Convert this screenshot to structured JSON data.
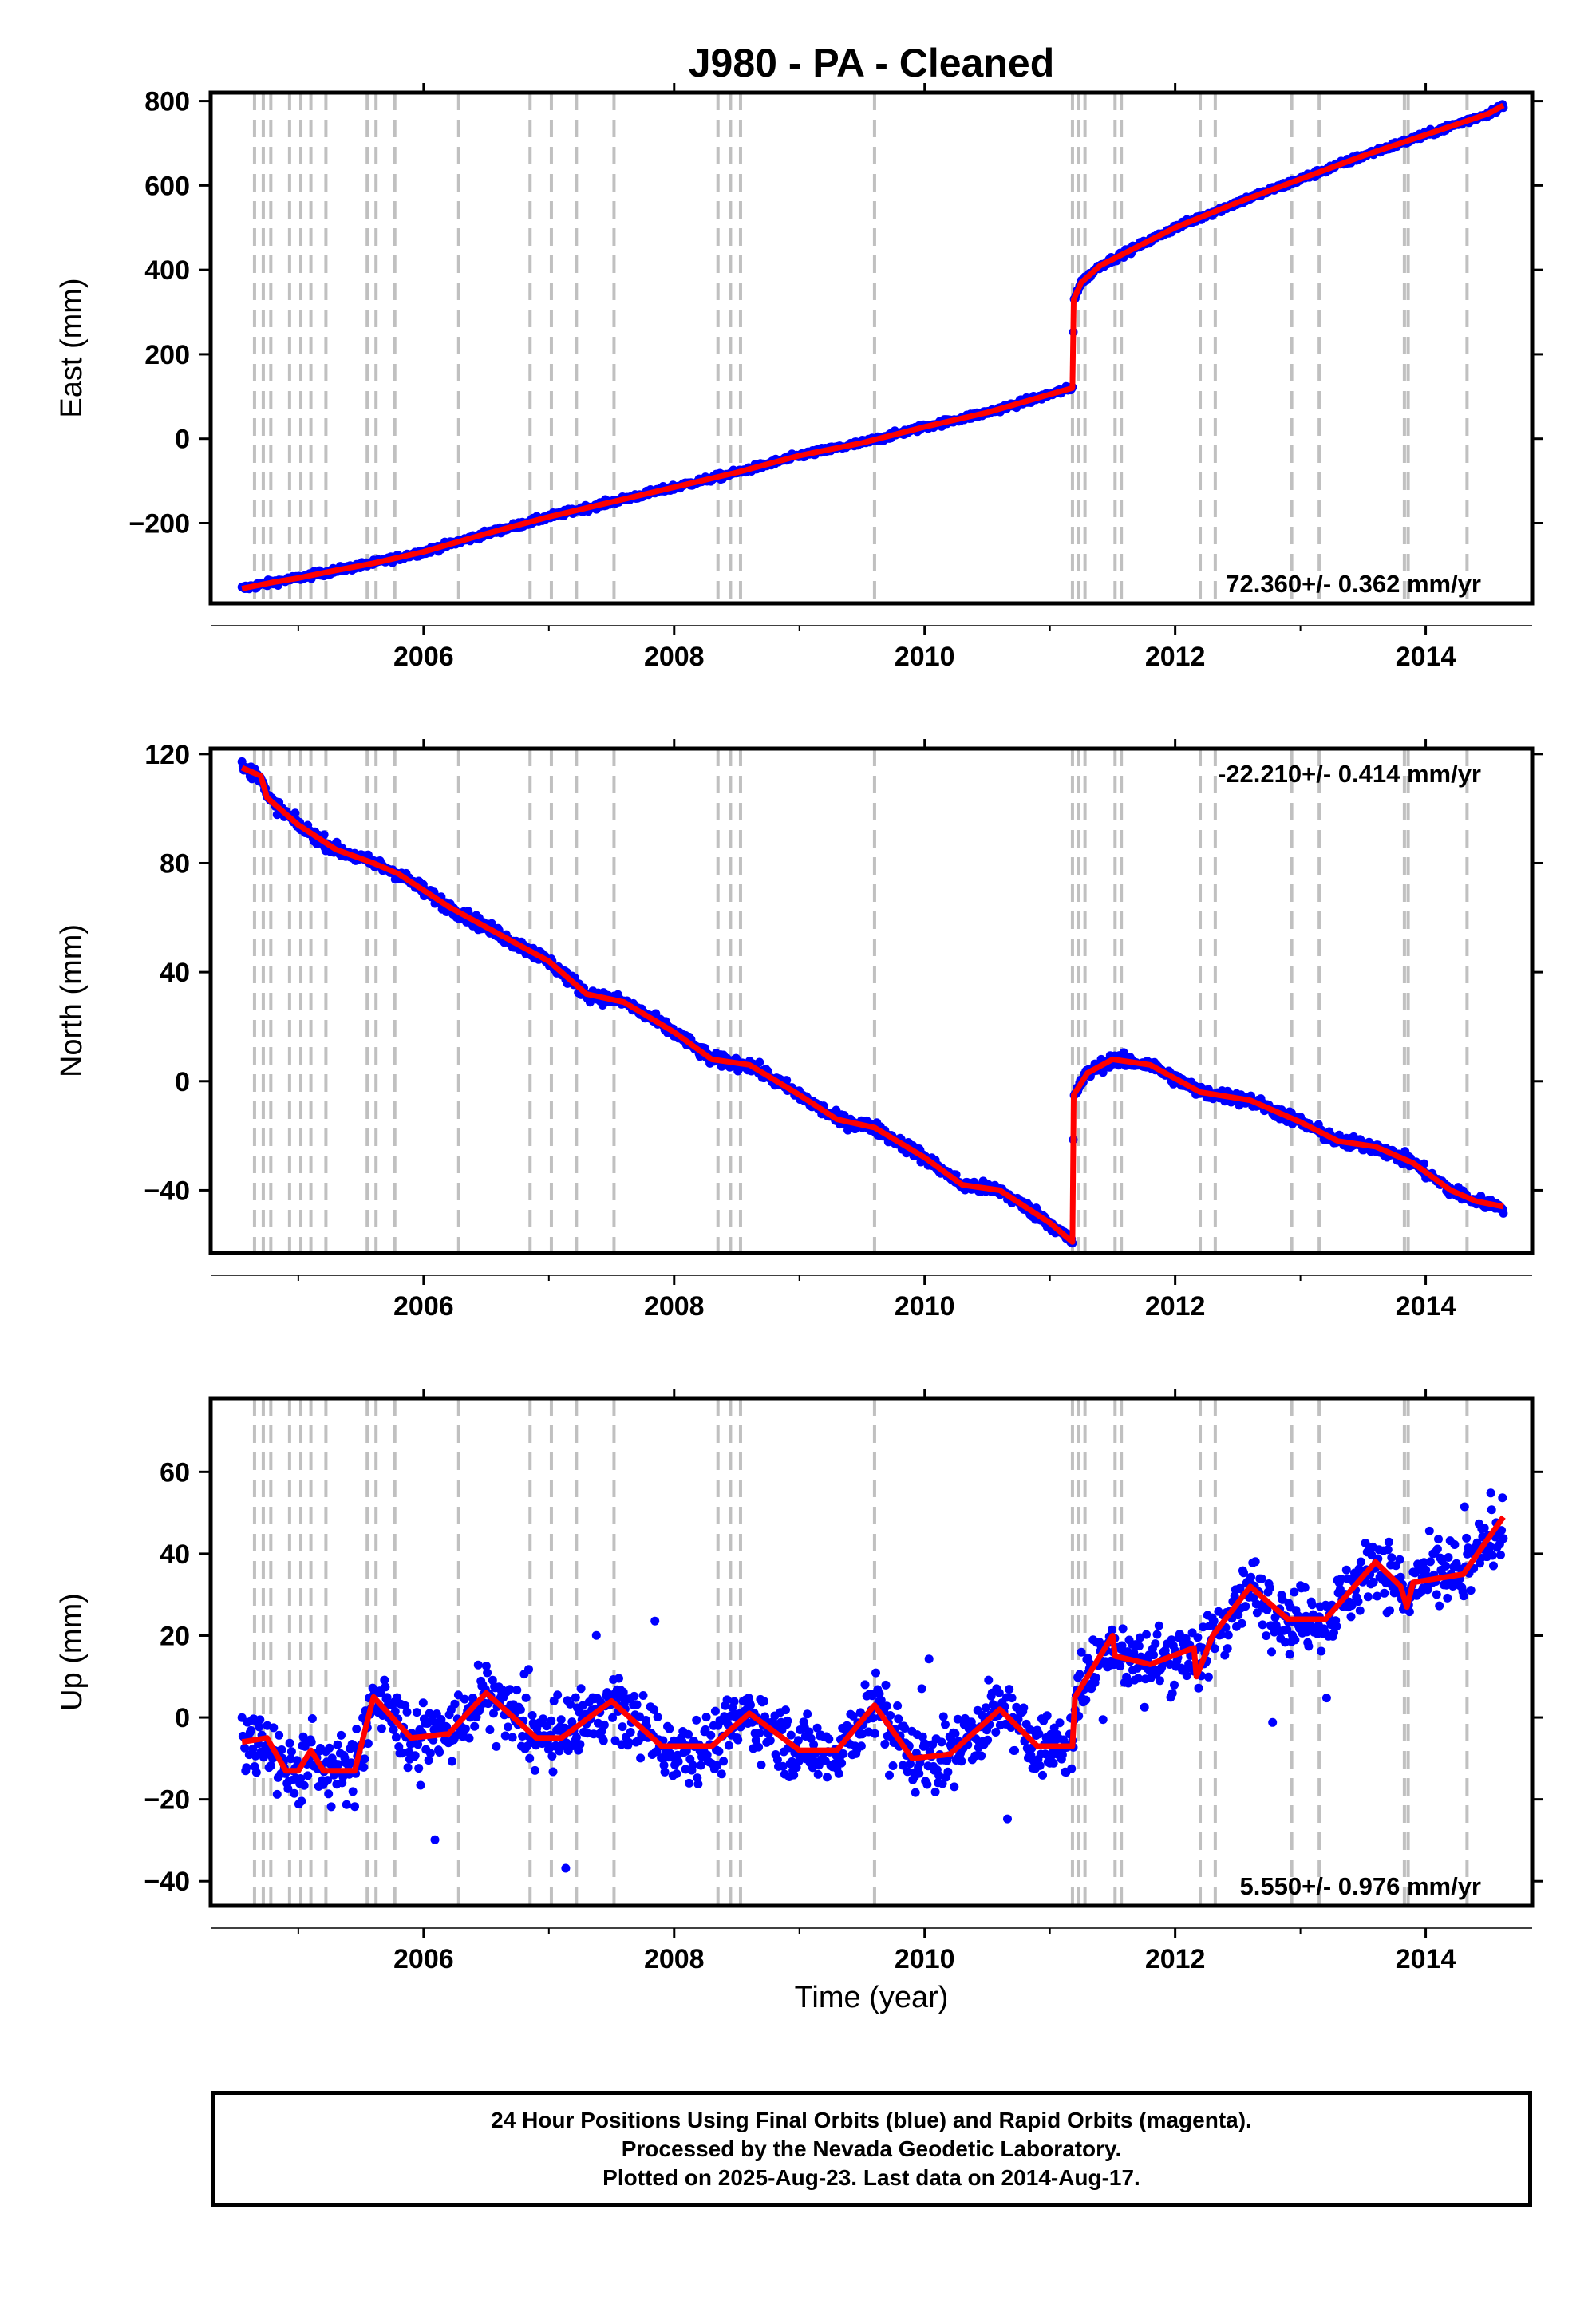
{
  "title": "J980  - PA - Cleaned",
  "xlabel": "Time (year)",
  "footer": {
    "line1": "24 Hour Positions Using Final Orbits (blue) and Rapid Orbits (magenta).",
    "line2": "Processed by the Nevada Geodetic Laboratory.",
    "line3": "Plotted on 2025-Aug-23. Last data on 2014-Aug-17."
  },
  "colors": {
    "points": "#0000ff",
    "model": "#ff0000",
    "event_lines": "#c0c0c0"
  },
  "chart_data": [
    {
      "type": "scatter",
      "ylabel": "East (mm)",
      "rate_label": "72.360+/- 0.362 mm/yr",
      "rate_position": "bottom-right",
      "xlim": [
        2004.3,
        2014.85
      ],
      "ylim": [
        -390,
        820
      ],
      "x_ticks": [
        2006,
        2008,
        2010,
        2012,
        2014
      ],
      "x_tick_labels": [
        "2006",
        "2008",
        "2010",
        "2012",
        "2014"
      ],
      "y_ticks": [
        -200,
        0,
        200,
        400,
        600,
        800
      ],
      "y_tick_labels": [
        "−200",
        "0",
        "200",
        "400",
        "600",
        "800"
      ],
      "series": [
        {
          "kind": "points",
          "x": [
            2004.55,
            2004.8,
            2005.0,
            2005.3,
            2005.6,
            2006.0,
            2006.5,
            2007.0,
            2007.5,
            2008.0,
            2008.5,
            2009.0,
            2009.5,
            2010.0,
            2010.5,
            2011.0,
            2011.18,
            2011.19,
            2011.25,
            2011.4,
            2011.6,
            2012.0,
            2012.5,
            2013.0,
            2013.5,
            2014.0,
            2014.5,
            2014.62
          ],
          "y": [
            -355,
            -340,
            -330,
            -312,
            -295,
            -268,
            -225,
            -185,
            -150,
            -115,
            -80,
            -40,
            -10,
            28,
            62,
            105,
            120,
            330,
            370,
            410,
            440,
            500,
            560,
            615,
            670,
            720,
            770,
            790
          ]
        },
        {
          "kind": "model",
          "x": [
            2004.55,
            2004.8,
            2005.0,
            2005.3,
            2005.6,
            2006.0,
            2006.5,
            2007.0,
            2007.5,
            2008.0,
            2008.5,
            2009.0,
            2009.5,
            2010.0,
            2010.5,
            2011.0,
            2011.18,
            2011.19,
            2011.25,
            2011.4,
            2011.6,
            2012.0,
            2012.5,
            2013.0,
            2013.5,
            2014.0,
            2014.5,
            2014.62
          ],
          "y": [
            -355,
            -340,
            -330,
            -312,
            -295,
            -268,
            -225,
            -185,
            -150,
            -115,
            -80,
            -40,
            -10,
            28,
            62,
            105,
            120,
            330,
            370,
            410,
            440,
            500,
            560,
            615,
            670,
            720,
            770,
            790
          ]
        }
      ]
    },
    {
      "type": "scatter",
      "ylabel": "North (mm)",
      "rate_label": "-22.210+/- 0.414 mm/yr",
      "rate_position": "top-right",
      "xlim": [
        2004.3,
        2014.85
      ],
      "ylim": [
        -63,
        122
      ],
      "x_ticks": [
        2006,
        2008,
        2010,
        2012,
        2014
      ],
      "x_tick_labels": [
        "2006",
        "2008",
        "2010",
        "2012",
        "2014"
      ],
      "y_ticks": [
        -40,
        0,
        40,
        80,
        120
      ],
      "y_tick_labels": [
        "−40",
        "0",
        "40",
        "80",
        "120"
      ],
      "series": [
        {
          "kind": "points",
          "x": [
            2004.55,
            2004.7,
            2004.75,
            2005.0,
            2005.3,
            2005.6,
            2005.8,
            2006.2,
            2006.6,
            2007.0,
            2007.3,
            2007.6,
            2008.0,
            2008.3,
            2008.6,
            2009.0,
            2009.3,
            2009.6,
            2010.0,
            2010.3,
            2010.6,
            2011.0,
            2011.18,
            2011.19,
            2011.3,
            2011.5,
            2011.8,
            2012.2,
            2012.6,
            2013.0,
            2013.3,
            2013.6,
            2013.9,
            2014.2,
            2014.4,
            2014.62
          ],
          "y": [
            115,
            112,
            104,
            94,
            85,
            80,
            76,
            64,
            54,
            44,
            32,
            29,
            18,
            8,
            6,
            -5,
            -14,
            -17,
            -28,
            -38,
            -40,
            -52,
            -59,
            -5,
            3,
            8,
            6,
            -4,
            -7,
            -15,
            -22,
            -24,
            -30,
            -40,
            -44,
            -46
          ]
        },
        {
          "kind": "model",
          "x": [
            2004.55,
            2004.7,
            2004.75,
            2005.0,
            2005.3,
            2005.6,
            2005.8,
            2006.2,
            2006.6,
            2007.0,
            2007.3,
            2007.6,
            2008.0,
            2008.3,
            2008.6,
            2009.0,
            2009.3,
            2009.6,
            2010.0,
            2010.3,
            2010.6,
            2011.0,
            2011.18,
            2011.19,
            2011.3,
            2011.5,
            2011.8,
            2012.2,
            2012.6,
            2013.0,
            2013.3,
            2013.6,
            2013.9,
            2014.2,
            2014.4,
            2014.62
          ],
          "y": [
            115,
            112,
            104,
            94,
            85,
            80,
            76,
            64,
            54,
            44,
            32,
            29,
            18,
            8,
            6,
            -5,
            -14,
            -17,
            -28,
            -38,
            -40,
            -52,
            -59,
            -5,
            3,
            8,
            6,
            -4,
            -7,
            -15,
            -22,
            -24,
            -30,
            -40,
            -44,
            -46
          ]
        }
      ]
    },
    {
      "type": "scatter",
      "ylabel": "Up (mm)",
      "rate_label": "5.550+/- 0.976 mm/yr",
      "rate_position": "bottom-right",
      "xlim": [
        2004.3,
        2014.85
      ],
      "ylim": [
        -46,
        78
      ],
      "x_ticks": [
        2006,
        2008,
        2010,
        2012,
        2014
      ],
      "x_tick_labels": [
        "2006",
        "2008",
        "2010",
        "2012",
        "2014"
      ],
      "y_ticks": [
        -40,
        -20,
        0,
        20,
        40,
        60
      ],
      "y_tick_labels": [
        "−40",
        "−20",
        "0",
        "20",
        "40",
        "60"
      ],
      "series": [
        {
          "kind": "points",
          "x": [
            2004.55,
            2004.75,
            2004.9,
            2005.0,
            2005.1,
            2005.2,
            2005.45,
            2005.6,
            2005.9,
            2006.2,
            2006.5,
            2006.9,
            2007.1,
            2007.5,
            2007.9,
            2008.3,
            2008.6,
            2009.0,
            2009.3,
            2009.6,
            2009.9,
            2010.2,
            2010.6,
            2010.9,
            2011.18,
            2011.2,
            2011.5,
            2011.52,
            2011.8,
            2012.15,
            2012.17,
            2012.3,
            2012.6,
            2012.9,
            2013.2,
            2013.6,
            2013.8,
            2013.85,
            2013.9,
            2014.3,
            2014.62
          ],
          "y": [
            -6,
            -5,
            -13,
            -13,
            -8,
            -13,
            -13,
            5,
            -5,
            -4,
            6,
            -5,
            -5,
            4,
            -7,
            -7,
            1,
            -8,
            -8,
            3,
            -10,
            -9,
            2,
            -7,
            -7,
            5,
            20,
            15,
            13,
            17,
            10,
            20,
            32,
            24,
            24,
            38,
            32,
            27,
            33,
            35,
            49
          ]
        },
        {
          "kind": "model",
          "x": [
            2004.55,
            2004.75,
            2004.9,
            2005.0,
            2005.1,
            2005.2,
            2005.45,
            2005.6,
            2005.9,
            2006.2,
            2006.5,
            2006.9,
            2007.1,
            2007.5,
            2007.9,
            2008.3,
            2008.6,
            2009.0,
            2009.3,
            2009.6,
            2009.9,
            2010.2,
            2010.6,
            2010.9,
            2011.18,
            2011.2,
            2011.5,
            2011.52,
            2011.8,
            2012.15,
            2012.17,
            2012.3,
            2012.6,
            2012.9,
            2013.2,
            2013.6,
            2013.8,
            2013.85,
            2013.9,
            2014.3,
            2014.62
          ],
          "y": [
            -6,
            -5,
            -13,
            -13,
            -8,
            -13,
            -13,
            5,
            -5,
            -4,
            6,
            -5,
            -5,
            4,
            -7,
            -7,
            1,
            -8,
            -8,
            3,
            -10,
            -9,
            2,
            -7,
            -7,
            5,
            20,
            15,
            13,
            17,
            10,
            20,
            32,
            24,
            24,
            38,
            32,
            27,
            33,
            35,
            49
          ]
        }
      ]
    }
  ],
  "event_lines": [
    2004.65,
    2004.72,
    2004.78,
    2004.93,
    2005.02,
    2005.1,
    2005.22,
    2005.55,
    2005.62,
    2005.77,
    2006.28,
    2006.85,
    2007.02,
    2007.22,
    2007.52,
    2008.35,
    2008.45,
    2008.53,
    2009.6,
    2011.18,
    2011.23,
    2011.28,
    2011.52,
    2011.57,
    2012.2,
    2012.32,
    2012.93,
    2013.15,
    2013.83,
    2013.86,
    2014.33
  ]
}
